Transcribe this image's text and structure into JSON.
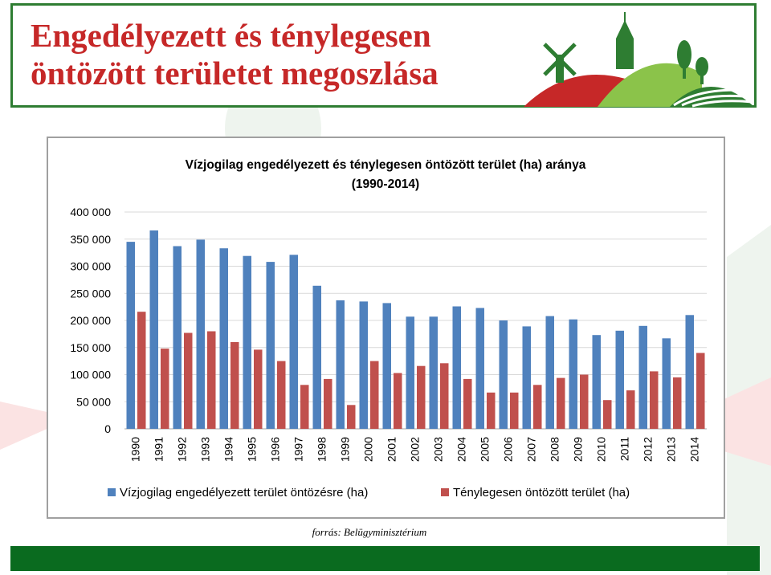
{
  "slide": {
    "title_line1": "Engedélyezett és ténylegesen",
    "title_line2": "öntözött területet megoszlása",
    "source": "forrás: Belügyminisztérium"
  },
  "colors": {
    "title": "#c62828",
    "border_green": "#2e7d32",
    "footer_green": "#0a6b1f",
    "series_blue": "#4f81bd",
    "series_red": "#c0504d"
  },
  "logo": {
    "icon": "windmill-church-hills-logo"
  },
  "chart_data": {
    "type": "bar",
    "title": "Vízjogilag engedélyezett és ténylegesen öntözött terület (ha) aránya",
    "subtitle": "(1990-2014)",
    "xlabel": "",
    "ylabel": "",
    "ylim": [
      0,
      400000
    ],
    "yticks": [
      "0",
      "50 000",
      "100 000",
      "150 000",
      "200 000",
      "250 000",
      "300 000",
      "350 000",
      "400 000"
    ],
    "grid": true,
    "legend": "bottom",
    "categories": [
      "1990",
      "1991",
      "1992",
      "1993",
      "1994",
      "1995",
      "1996",
      "1997",
      "1998",
      "1999",
      "2000",
      "2001",
      "2002",
      "2003",
      "2004",
      "2005",
      "2006",
      "2007",
      "2008",
      "2009",
      "2010",
      "2011",
      "2012",
      "2013",
      "2014"
    ],
    "series": [
      {
        "name": "Vízjogilag engedélyezett terület öntözésre (ha)",
        "color": "#4f81bd",
        "values": [
          345000,
          366000,
          337000,
          349000,
          333000,
          319000,
          308000,
          321000,
          264000,
          237000,
          235000,
          232000,
          207000,
          207000,
          226000,
          223000,
          200000,
          189000,
          208000,
          202000,
          173000,
          181000,
          190000,
          167000,
          210000
        ]
      },
      {
        "name": "Ténylegesen öntözött terület (ha)",
        "color": "#c0504d",
        "values": [
          216000,
          148000,
          177000,
          180000,
          160000,
          146000,
          125000,
          81000,
          92000,
          44000,
          125000,
          103000,
          116000,
          121000,
          92000,
          67000,
          67000,
          81000,
          94000,
          100000,
          53000,
          71000,
          106000,
          95000,
          140000
        ]
      }
    ]
  }
}
